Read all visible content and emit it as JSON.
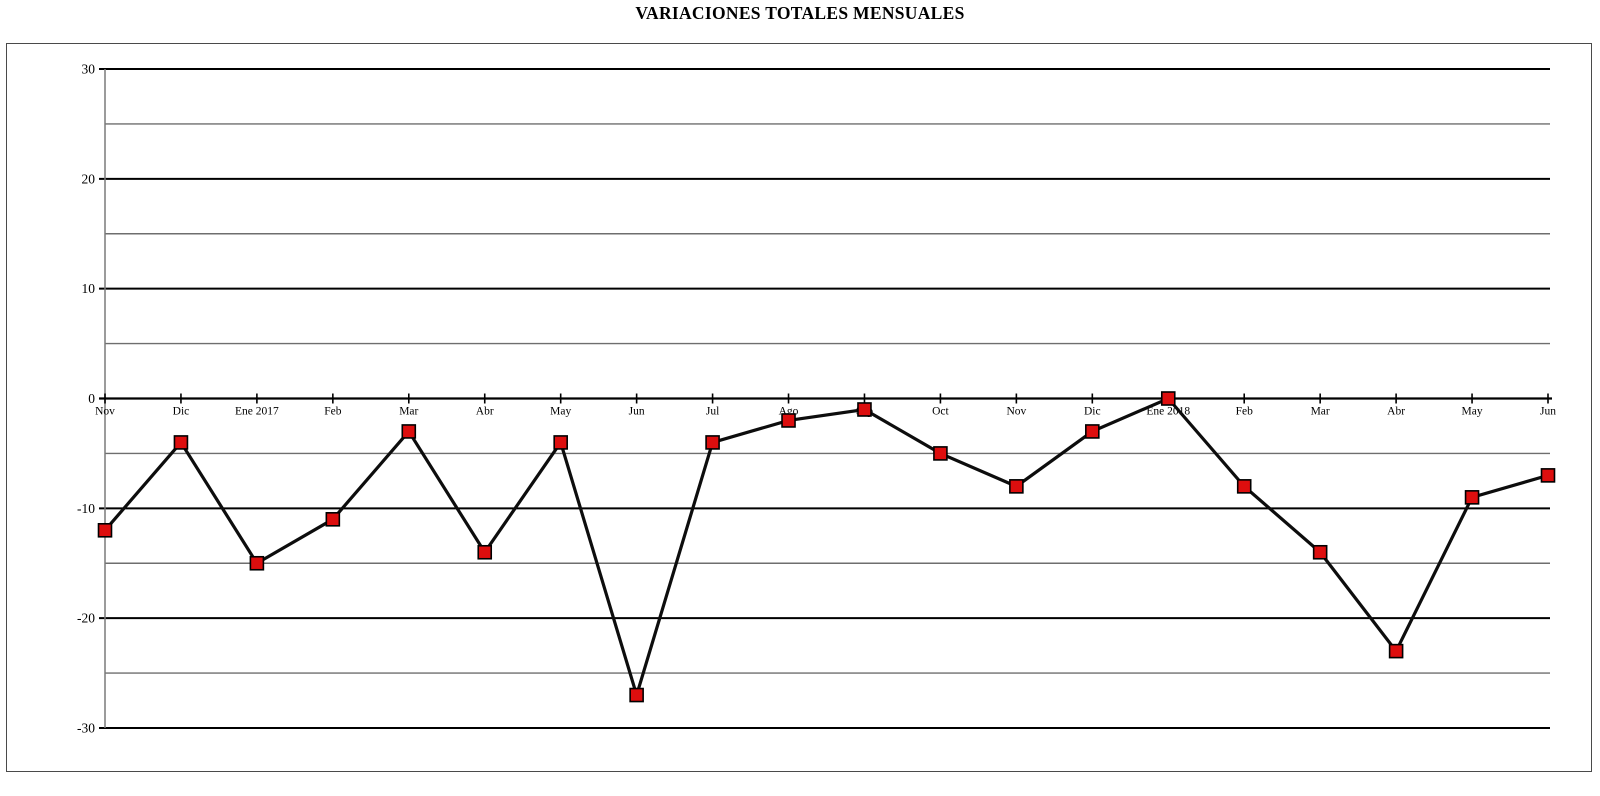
{
  "title": "VARIACIONES TOTALES MENSUALES",
  "chart_data": {
    "type": "line",
    "title": "VARIACIONES TOTALES MENSUALES",
    "categories": [
      "Nov",
      "Dic",
      "Ene 2017",
      "Feb",
      "Mar",
      "Abr",
      "May",
      "Jun",
      "Jul",
      "Ago",
      "Sep",
      "Oct",
      "Nov",
      "Dic",
      "Ene 2018",
      "Feb",
      "Mar",
      "Abr",
      "May",
      "Jun"
    ],
    "values": [
      -12,
      -4,
      -15,
      -11,
      -3,
      -14,
      -4,
      -27,
      -4,
      -2,
      -1,
      -5,
      -8,
      -3,
      0,
      -8,
      -14,
      -23,
      -9,
      -7
    ],
    "xlabel": "",
    "ylabel": "",
    "ylim": [
      -30,
      30
    ],
    "y_major_ticks": [
      30,
      20,
      10,
      0,
      -10,
      -20,
      -30
    ],
    "y_minor_step": 5,
    "grid": true,
    "legend": false,
    "colors": {
      "line": "#0d0d0d",
      "marker_fill": "#dd0e0e",
      "marker_border": "#000000",
      "major_grid": "#000000",
      "minor_grid": "#6e6e6e",
      "y_axis": "#7a7a7a",
      "x_axis": "#000000",
      "text": "#000000"
    }
  }
}
